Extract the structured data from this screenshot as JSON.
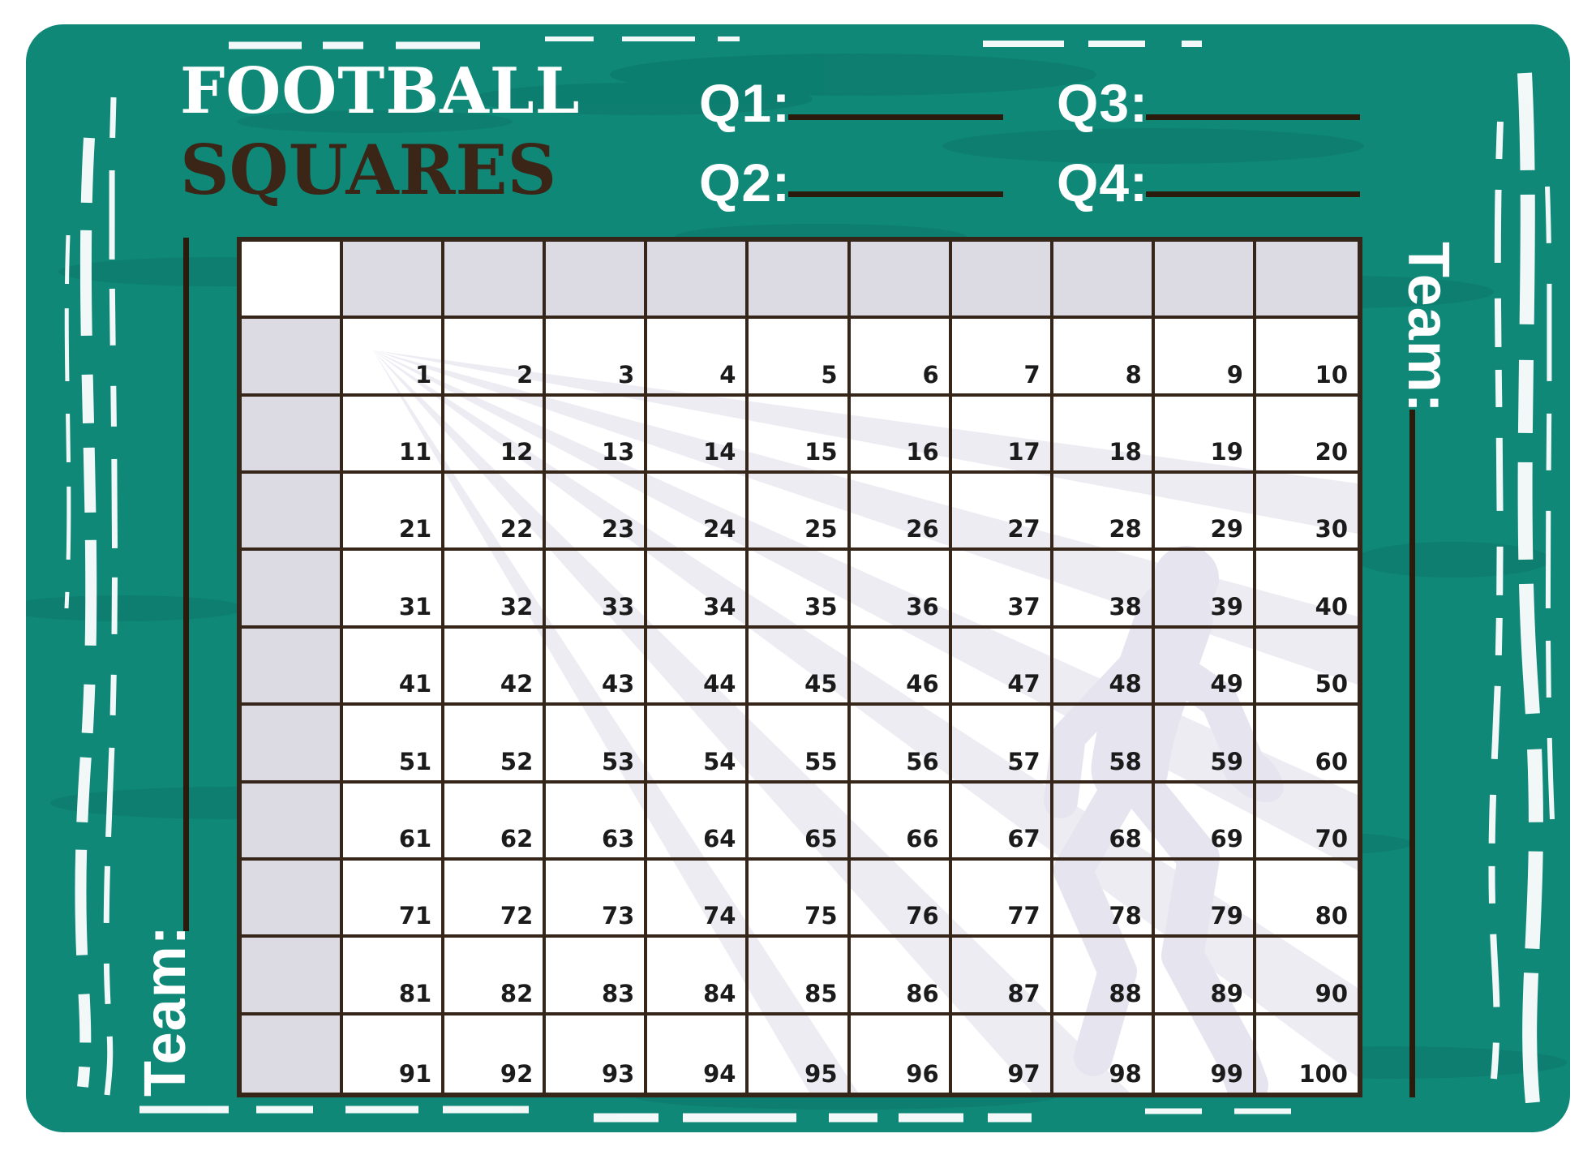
{
  "title": {
    "line1": "FOOTBALL",
    "line2": "SQUARES"
  },
  "quarters": {
    "q1": {
      "label": "Q1:",
      "value": ""
    },
    "q2": {
      "label": "Q2:",
      "value": ""
    },
    "q3": {
      "label": "Q3:",
      "value": ""
    },
    "q4": {
      "label": "Q4:",
      "value": ""
    }
  },
  "teams": {
    "left": {
      "label": "Team:",
      "value": ""
    },
    "right": {
      "label": "Team:",
      "value": ""
    }
  },
  "board": {
    "rows": 10,
    "cols": 10,
    "header_row_blank": true,
    "header_column_blank": true,
    "numbers": [
      1,
      2,
      3,
      4,
      5,
      6,
      7,
      8,
      9,
      10,
      11,
      12,
      13,
      14,
      15,
      16,
      17,
      18,
      19,
      20,
      21,
      22,
      23,
      24,
      25,
      26,
      27,
      28,
      29,
      30,
      31,
      32,
      33,
      34,
      35,
      36,
      37,
      38,
      39,
      40,
      41,
      42,
      43,
      44,
      45,
      46,
      47,
      48,
      49,
      50,
      51,
      52,
      53,
      54,
      55,
      56,
      57,
      58,
      59,
      60,
      61,
      62,
      63,
      64,
      65,
      66,
      67,
      68,
      69,
      70,
      71,
      72,
      73,
      74,
      75,
      76,
      77,
      78,
      79,
      80,
      81,
      82,
      83,
      84,
      85,
      86,
      87,
      88,
      89,
      90,
      91,
      92,
      93,
      94,
      95,
      96,
      97,
      98,
      99,
      100
    ]
  },
  "watermark": {
    "icons": [
      "speed-lines-icon",
      "football-player-icon"
    ]
  },
  "colors": {
    "teal": "#0F8878",
    "teal_patch": "#0B7466",
    "frame_white": "#FFFFFF",
    "title_brown": "#3A2517",
    "blank_line": "#2A1B0D",
    "grid_line": "#362519",
    "header_cell": "#DCDBE4",
    "cell_white": "#FFFFFF",
    "number_black": "#1B1B1B",
    "stripe_gray": "#EDECF3",
    "player_gray": "#E6E4EE"
  }
}
